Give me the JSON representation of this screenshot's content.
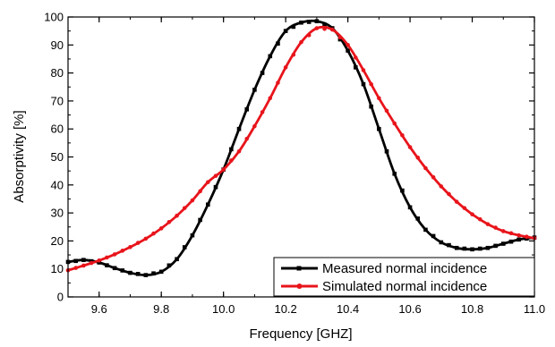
{
  "chart_data": {
    "type": "line",
    "title": "",
    "xlabel": "Frequency [GHZ]",
    "ylabel": "Absorptivity [%]",
    "xlim": [
      9.5,
      11.0
    ],
    "ylim": [
      0,
      100
    ],
    "x_major_ticks": [
      "9.6",
      "9.8",
      "10.0",
      "10.2",
      "10.4",
      "10.6",
      "10.8",
      "11.0"
    ],
    "y_major_ticks": [
      "0",
      "10",
      "20",
      "30",
      "40",
      "50",
      "60",
      "70",
      "80",
      "90",
      "100"
    ],
    "grid": false,
    "legend_position": "bottom-right",
    "series": [
      {
        "name": "Measured normal incidence",
        "color": "#000000",
        "marker": "square",
        "x": [
          9.5,
          9.55,
          9.6,
          9.65,
          9.7,
          9.75,
          9.8,
          9.85,
          9.9,
          9.95,
          10.0,
          10.05,
          10.1,
          10.15,
          10.2,
          10.25,
          10.3,
          10.35,
          10.4,
          10.45,
          10.5,
          10.55,
          10.6,
          10.65,
          10.7,
          10.75,
          10.8,
          10.85,
          10.9,
          10.95,
          11.0
        ],
        "y": [
          12.5,
          13.2,
          12.3,
          10.3,
          8.6,
          7.8,
          9.0,
          13.5,
          22.0,
          33.0,
          45.5,
          60.0,
          74.0,
          86.0,
          95.0,
          98.0,
          98.5,
          96.0,
          88.0,
          76.0,
          60.0,
          44.0,
          32.0,
          24.0,
          19.5,
          17.5,
          17.0,
          17.5,
          19.0,
          20.5,
          21.2
        ]
      },
      {
        "name": "Simulated normal incidence",
        "color": "#e8141b",
        "marker": "circle",
        "x": [
          9.5,
          9.55,
          9.6,
          9.65,
          9.7,
          9.75,
          9.8,
          9.85,
          9.9,
          9.95,
          10.0,
          10.05,
          10.1,
          10.15,
          10.2,
          10.25,
          10.3,
          10.35,
          10.4,
          10.45,
          10.5,
          10.55,
          10.6,
          10.65,
          10.7,
          10.75,
          10.8,
          10.85,
          10.9,
          10.95,
          11.0
        ],
        "y": [
          9.5,
          11.2,
          13.0,
          15.2,
          17.8,
          20.8,
          24.5,
          29.0,
          34.5,
          41.0,
          45.5,
          52.0,
          61.0,
          71.0,
          82.0,
          91.0,
          96.0,
          95.5,
          90.0,
          81.0,
          71.0,
          62.0,
          53.5,
          46.0,
          39.5,
          34.0,
          29.5,
          26.0,
          23.5,
          22.0,
          21.0
        ]
      }
    ]
  }
}
